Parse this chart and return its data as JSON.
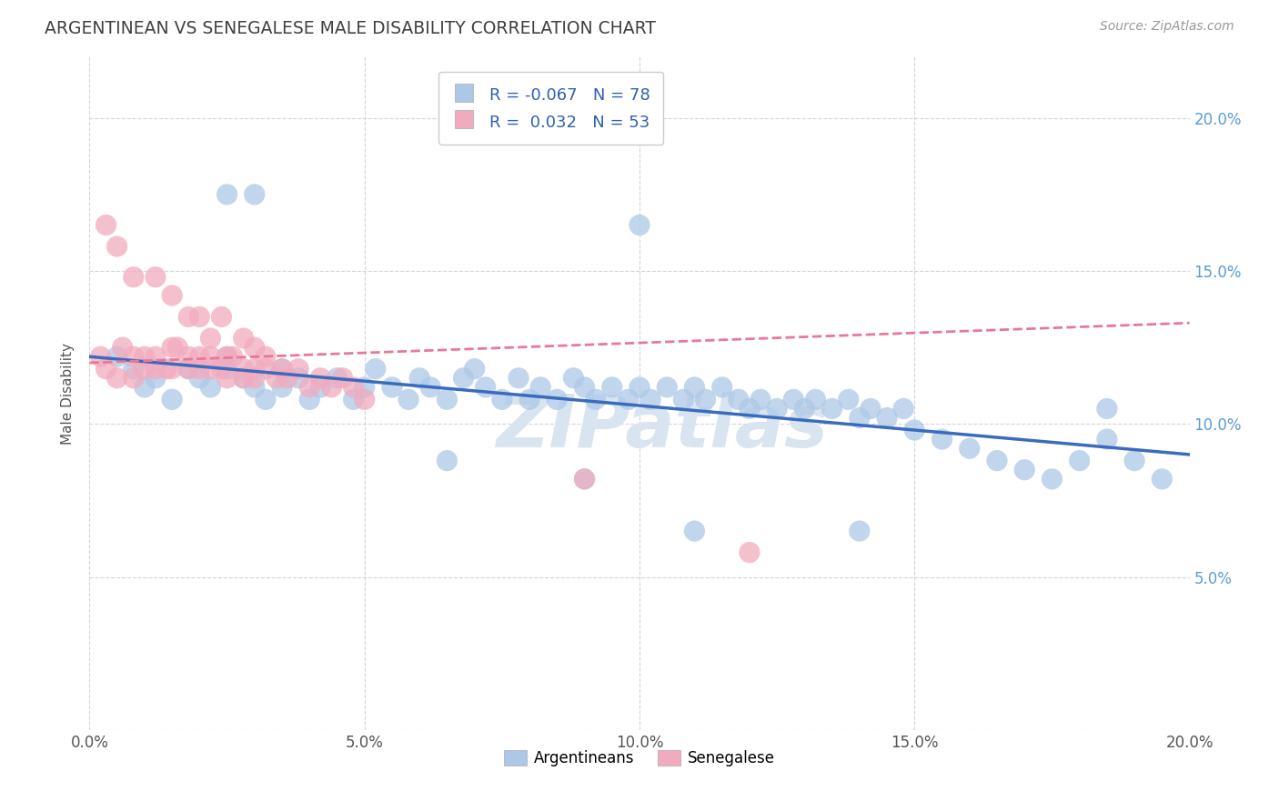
{
  "title": "ARGENTINEAN VS SENEGALESE MALE DISABILITY CORRELATION CHART",
  "source": "Source: ZipAtlas.com",
  "ylabel": "Male Disability",
  "xlim": [
    0.0,
    0.2
  ],
  "ylim": [
    0.0,
    0.22
  ],
  "x_ticks": [
    0.0,
    0.05,
    0.1,
    0.15,
    0.2
  ],
  "x_tick_labels": [
    "0.0%",
    "5.0%",
    "10.0%",
    "15.0%",
    "20.0%"
  ],
  "y_ticks": [
    0.05,
    0.1,
    0.15,
    0.2
  ],
  "y_tick_labels_right": [
    "5.0%",
    "10.0%",
    "15.0%",
    "20.0%"
  ],
  "blue_R": "-0.067",
  "blue_N": "78",
  "pink_R": "0.032",
  "pink_N": "53",
  "blue_color": "#adc8e6",
  "pink_color": "#f2abbe",
  "blue_line_color": "#3a6bbf",
  "pink_line_color": "#e87898",
  "legend_blue_label": "Argentineans",
  "legend_pink_label": "Senegalese",
  "blue_trend_x0": 0.0,
  "blue_trend_y0": 0.122,
  "blue_trend_x1": 0.2,
  "blue_trend_y1": 0.09,
  "pink_trend_x0": 0.0,
  "pink_trend_y0": 0.12,
  "pink_trend_x1": 0.2,
  "pink_trend_y1": 0.133,
  "blue_scatter_x": [
    0.005,
    0.008,
    0.01,
    0.012,
    0.015,
    0.018,
    0.02,
    0.022,
    0.025,
    0.025,
    0.028,
    0.03,
    0.032,
    0.035,
    0.035,
    0.038,
    0.04,
    0.042,
    0.045,
    0.048,
    0.05,
    0.052,
    0.055,
    0.058,
    0.06,
    0.062,
    0.065,
    0.068,
    0.07,
    0.072,
    0.075,
    0.078,
    0.08,
    0.082,
    0.085,
    0.088,
    0.09,
    0.092,
    0.095,
    0.098,
    0.1,
    0.102,
    0.105,
    0.108,
    0.11,
    0.112,
    0.115,
    0.118,
    0.12,
    0.122,
    0.125,
    0.128,
    0.13,
    0.132,
    0.135,
    0.138,
    0.14,
    0.142,
    0.145,
    0.148,
    0.15,
    0.155,
    0.16,
    0.165,
    0.17,
    0.175,
    0.18,
    0.185,
    0.19,
    0.195,
    0.025,
    0.03,
    0.14,
    0.1,
    0.11,
    0.09,
    0.185,
    0.065
  ],
  "blue_scatter_y": [
    0.122,
    0.118,
    0.112,
    0.115,
    0.108,
    0.118,
    0.115,
    0.112,
    0.122,
    0.118,
    0.115,
    0.112,
    0.108,
    0.118,
    0.112,
    0.115,
    0.108,
    0.112,
    0.115,
    0.108,
    0.112,
    0.118,
    0.112,
    0.108,
    0.115,
    0.112,
    0.108,
    0.115,
    0.118,
    0.112,
    0.108,
    0.115,
    0.108,
    0.112,
    0.108,
    0.115,
    0.112,
    0.108,
    0.112,
    0.108,
    0.112,
    0.108,
    0.112,
    0.108,
    0.112,
    0.108,
    0.112,
    0.108,
    0.105,
    0.108,
    0.105,
    0.108,
    0.105,
    0.108,
    0.105,
    0.108,
    0.102,
    0.105,
    0.102,
    0.105,
    0.098,
    0.095,
    0.092,
    0.088,
    0.085,
    0.082,
    0.088,
    0.095,
    0.088,
    0.082,
    0.175,
    0.175,
    0.065,
    0.165,
    0.065,
    0.082,
    0.105,
    0.088
  ],
  "pink_scatter_x": [
    0.002,
    0.003,
    0.005,
    0.006,
    0.008,
    0.008,
    0.01,
    0.01,
    0.012,
    0.012,
    0.014,
    0.015,
    0.015,
    0.016,
    0.018,
    0.018,
    0.02,
    0.02,
    0.022,
    0.022,
    0.024,
    0.025,
    0.025,
    0.026,
    0.028,
    0.028,
    0.03,
    0.03,
    0.032,
    0.032,
    0.034,
    0.035,
    0.036,
    0.038,
    0.04,
    0.042,
    0.044,
    0.046,
    0.048,
    0.05,
    0.003,
    0.005,
    0.008,
    0.012,
    0.015,
    0.018,
    0.02,
    0.022,
    0.024,
    0.028,
    0.03,
    0.12,
    0.09
  ],
  "pink_scatter_y": [
    0.122,
    0.118,
    0.115,
    0.125,
    0.115,
    0.122,
    0.118,
    0.122,
    0.118,
    0.122,
    0.118,
    0.125,
    0.118,
    0.125,
    0.118,
    0.122,
    0.118,
    0.122,
    0.118,
    0.122,
    0.118,
    0.122,
    0.115,
    0.122,
    0.118,
    0.115,
    0.118,
    0.115,
    0.118,
    0.122,
    0.115,
    0.118,
    0.115,
    0.118,
    0.112,
    0.115,
    0.112,
    0.115,
    0.112,
    0.108,
    0.165,
    0.158,
    0.148,
    0.148,
    0.142,
    0.135,
    0.135,
    0.128,
    0.135,
    0.128,
    0.125,
    0.058,
    0.082
  ],
  "watermark": "ZIPatlas",
  "background_color": "#ffffff",
  "grid_color": "#c8c8d8"
}
